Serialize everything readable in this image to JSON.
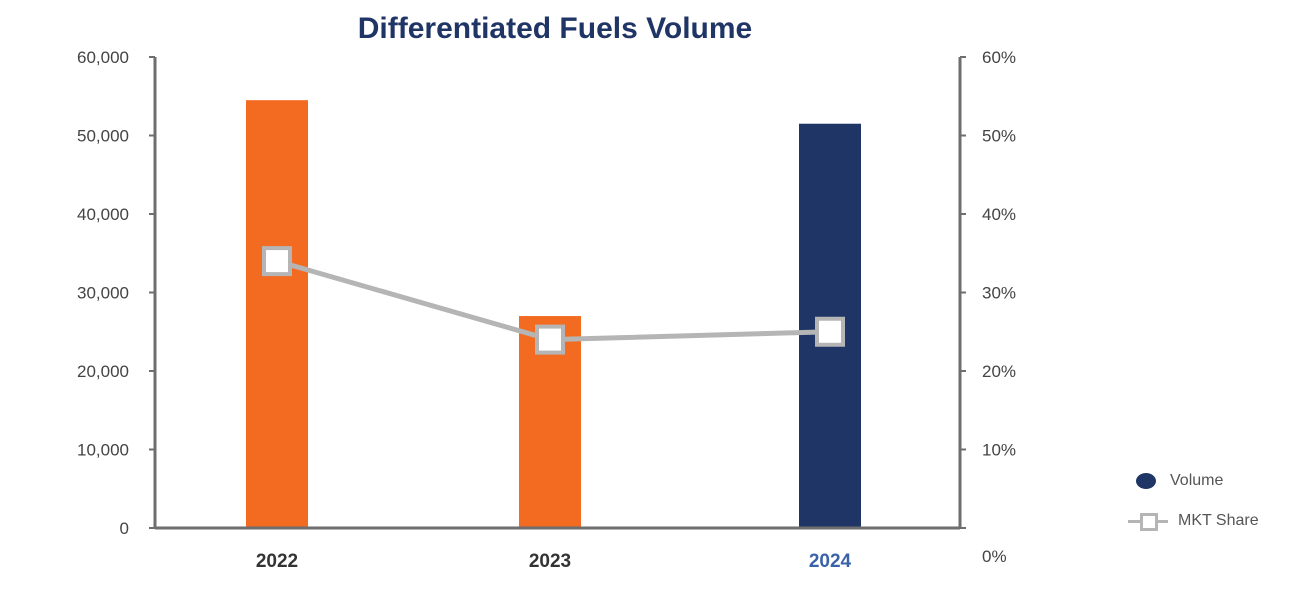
{
  "chart_data": {
    "type": "bar",
    "title": "Differentiated Fuels Volume",
    "categories": [
      "2022",
      "2023",
      "2024"
    ],
    "series": [
      {
        "name": "Volume",
        "type": "bar",
        "axis": "left",
        "values": [
          54500,
          27000,
          51500
        ],
        "colors": [
          "#f26b21",
          "#f26b21",
          "#1f3566"
        ]
      },
      {
        "name": "MKT Share",
        "type": "line",
        "axis": "right",
        "values": [
          0.34,
          0.24,
          0.25
        ],
        "color": "#b5b5b5"
      }
    ],
    "y_left": {
      "ylim": [
        0,
        60000
      ],
      "ticks": [
        "0",
        "10,000",
        "20,000",
        "30,000",
        "40,000",
        "50,000",
        "60,000"
      ]
    },
    "y_right": {
      "ylim": [
        0,
        0.6
      ],
      "ticks": [
        "0%",
        "10%",
        "20%",
        "30%",
        "40%",
        "50%",
        "60%"
      ]
    },
    "category_label_colors": [
      "#333333",
      "#333333",
      "#3a62a8"
    ],
    "title_color": "#1f3566",
    "legend_position": "bottom-right",
    "grid": false
  }
}
